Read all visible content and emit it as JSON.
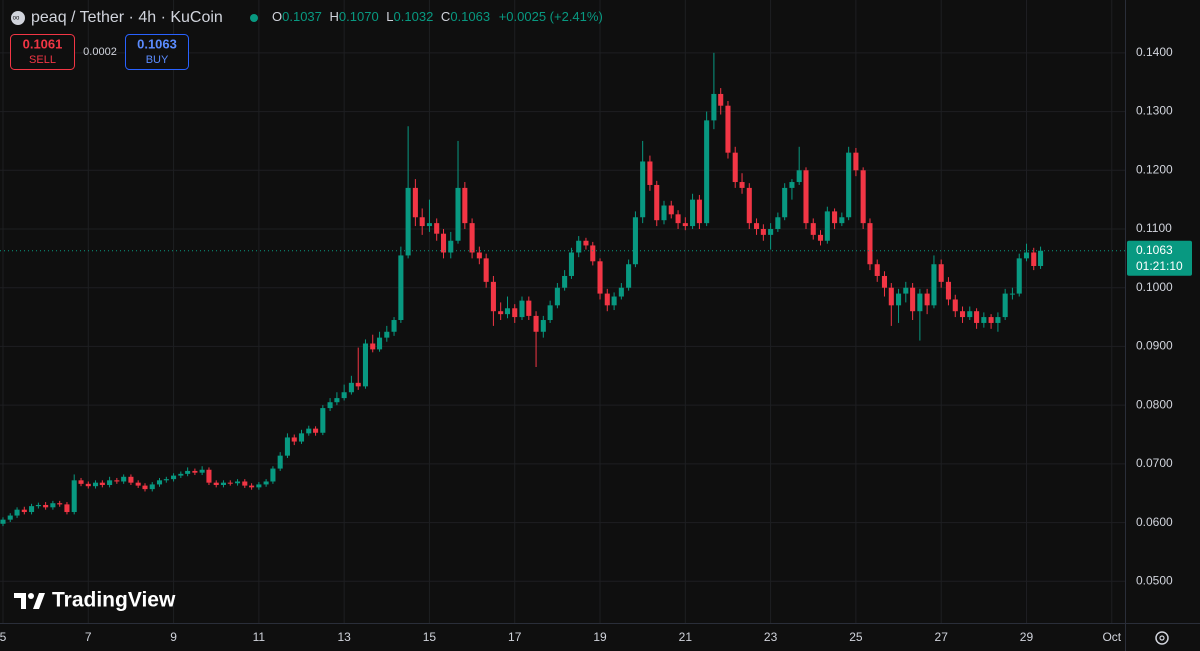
{
  "header": {
    "symbol": "peaq / Tether · 4h · KuCoin",
    "o_label": "O",
    "open": "0.1037",
    "h_label": "H",
    "high": "0.1070",
    "l_label": "L",
    "low": "0.1032",
    "c_label": "C",
    "close": "0.1063",
    "change": "+0.0025 (+2.41%)"
  },
  "trade": {
    "sell_price": "0.1061",
    "sell_label": "SELL",
    "spread": "0.0002",
    "buy_price": "0.1063",
    "buy_label": "BUY"
  },
  "price_label": {
    "price": "0.1063",
    "countdown": "01:21:10"
  },
  "watermark": "TradingView",
  "chart_data": {
    "type": "candlestick",
    "up_color": "#089981",
    "down_color": "#f23645",
    "grid": true,
    "xlim": [
      4.93,
      31.31
    ],
    "ylim": [
      0.0429,
      0.149
    ],
    "xticks": [
      5,
      7,
      9,
      11,
      13,
      15,
      17,
      19,
      21,
      23,
      25,
      27,
      29,
      {
        "value": 31,
        "label": "Oct"
      }
    ],
    "yticks": [
      {
        "value": 0.05,
        "label": "0.0500"
      },
      {
        "value": 0.06,
        "label": "0.0600"
      },
      {
        "value": 0.07,
        "label": "0.0700"
      },
      {
        "value": 0.08,
        "label": "0.0800"
      },
      {
        "value": 0.09,
        "label": "0.0900"
      },
      {
        "value": 0.1,
        "label": "0.1000"
      },
      {
        "value": 0.11,
        "label": "0.1100"
      },
      {
        "value": 0.12,
        "label": "0.1200"
      },
      {
        "value": 0.13,
        "label": "0.1300"
      },
      {
        "value": 0.14,
        "label": "0.1400"
      }
    ],
    "x": [
      5,
      5.17,
      5.33,
      5.5,
      5.67,
      5.83,
      6,
      6.17,
      6.33,
      6.5,
      6.67,
      6.83,
      7,
      7.17,
      7.33,
      7.5,
      7.67,
      7.83,
      8,
      8.17,
      8.33,
      8.5,
      8.67,
      8.83,
      9,
      9.17,
      9.33,
      9.5,
      9.67,
      9.83,
      10,
      10.17,
      10.33,
      10.5,
      10.67,
      10.83,
      11,
      11.17,
      11.33,
      11.5,
      11.67,
      11.83,
      12,
      12.17,
      12.33,
      12.5,
      12.67,
      12.83,
      13,
      13.17,
      13.33,
      13.5,
      13.67,
      13.83,
      14,
      14.17,
      14.33,
      14.5,
      14.67,
      14.83,
      15,
      15.17,
      15.33,
      15.5,
      15.67,
      15.83,
      16,
      16.17,
      16.33,
      16.5,
      16.67,
      16.83,
      17,
      17.17,
      17.33,
      17.5,
      17.67,
      17.83,
      18,
      18.17,
      18.33,
      18.5,
      18.67,
      18.83,
      19,
      19.17,
      19.33,
      19.5,
      19.67,
      19.83,
      20,
      20.17,
      20.33,
      20.5,
      20.67,
      20.83,
      21,
      21.17,
      21.33,
      21.5,
      21.67,
      21.83,
      22,
      22.17,
      22.33,
      22.5,
      22.67,
      22.83,
      23,
      23.17,
      23.33,
      23.5,
      23.67,
      23.83,
      24,
      24.17,
      24.33,
      24.5,
      24.67,
      24.83,
      25,
      25.17,
      25.33,
      25.5,
      25.67,
      25.83,
      26,
      26.17,
      26.33,
      26.5,
      26.67,
      26.83,
      27,
      27.17,
      27.33,
      27.5,
      27.67,
      27.83,
      28,
      28.17,
      28.33,
      28.5,
      28.67,
      28.83,
      29,
      29.17,
      29.33
    ],
    "candles": [
      [
        0.0598,
        0.0609,
        0.0594,
        0.0605
      ],
      [
        0.0605,
        0.0616,
        0.0601,
        0.0612
      ],
      [
        0.0612,
        0.0626,
        0.0608,
        0.0622
      ],
      [
        0.0622,
        0.0627,
        0.0614,
        0.0618
      ],
      [
        0.0618,
        0.0632,
        0.0614,
        0.0628
      ],
      [
        0.0628,
        0.0634,
        0.0624,
        0.063
      ],
      [
        0.063,
        0.0635,
        0.0622,
        0.0626
      ],
      [
        0.0626,
        0.0637,
        0.0622,
        0.0633
      ],
      [
        0.0633,
        0.0637,
        0.0627,
        0.0631
      ],
      [
        0.0631,
        0.0635,
        0.0614,
        0.0618
      ],
      [
        0.0618,
        0.0682,
        0.0614,
        0.0672
      ],
      [
        0.0672,
        0.0676,
        0.0662,
        0.0666
      ],
      [
        0.0666,
        0.067,
        0.0658,
        0.0662
      ],
      [
        0.0662,
        0.0672,
        0.0658,
        0.0668
      ],
      [
        0.0668,
        0.0672,
        0.066,
        0.0664
      ],
      [
        0.0664,
        0.0678,
        0.066,
        0.0672
      ],
      [
        0.0672,
        0.0676,
        0.0666,
        0.067
      ],
      [
        0.067,
        0.0682,
        0.0666,
        0.0678
      ],
      [
        0.0678,
        0.0682,
        0.0664,
        0.0668
      ],
      [
        0.0668,
        0.0672,
        0.0659,
        0.0663
      ],
      [
        0.0663,
        0.0667,
        0.0653,
        0.0657
      ],
      [
        0.0657,
        0.0669,
        0.0653,
        0.0665
      ],
      [
        0.0665,
        0.0676,
        0.0661,
        0.0672
      ],
      [
        0.0672,
        0.0678,
        0.0668,
        0.0674
      ],
      [
        0.0674,
        0.0684,
        0.067,
        0.068
      ],
      [
        0.068,
        0.0687,
        0.0676,
        0.0683
      ],
      [
        0.0683,
        0.0694,
        0.0679,
        0.0688
      ],
      [
        0.0688,
        0.0692,
        0.0681,
        0.0685
      ],
      [
        0.0685,
        0.0696,
        0.0681,
        0.069
      ],
      [
        0.069,
        0.0694,
        0.0664,
        0.0668
      ],
      [
        0.0668,
        0.0672,
        0.066,
        0.0664
      ],
      [
        0.0664,
        0.0672,
        0.066,
        0.0668
      ],
      [
        0.0668,
        0.0672,
        0.0663,
        0.0667
      ],
      [
        0.0667,
        0.0674,
        0.0663,
        0.067
      ],
      [
        0.067,
        0.0674,
        0.0659,
        0.0663
      ],
      [
        0.0663,
        0.0667,
        0.0656,
        0.066
      ],
      [
        0.066,
        0.0669,
        0.0656,
        0.0665
      ],
      [
        0.0665,
        0.0674,
        0.0661,
        0.067
      ],
      [
        0.067,
        0.0696,
        0.0666,
        0.0692
      ],
      [
        0.0692,
        0.072,
        0.0688,
        0.0714
      ],
      [
        0.0714,
        0.0752,
        0.071,
        0.0745
      ],
      [
        0.0745,
        0.075,
        0.0732,
        0.0738
      ],
      [
        0.0738,
        0.0758,
        0.0734,
        0.0752
      ],
      [
        0.0752,
        0.0765,
        0.0748,
        0.076
      ],
      [
        0.076,
        0.0764,
        0.0748,
        0.0753
      ],
      [
        0.0753,
        0.08,
        0.0749,
        0.0795
      ],
      [
        0.0795,
        0.0812,
        0.079,
        0.0805
      ],
      [
        0.0805,
        0.0822,
        0.08,
        0.0812
      ],
      [
        0.0812,
        0.0835,
        0.0808,
        0.0822
      ],
      [
        0.0822,
        0.085,
        0.0818,
        0.0838
      ],
      [
        0.0838,
        0.0898,
        0.0826,
        0.0832
      ],
      [
        0.0832,
        0.0912,
        0.0828,
        0.0905
      ],
      [
        0.0905,
        0.092,
        0.089,
        0.0895
      ],
      [
        0.0895,
        0.0925,
        0.0891,
        0.0915
      ],
      [
        0.0915,
        0.0935,
        0.0908,
        0.0925
      ],
      [
        0.0925,
        0.095,
        0.0918,
        0.0945
      ],
      [
        0.0945,
        0.107,
        0.094,
        0.1055
      ],
      [
        0.1055,
        0.1275,
        0.105,
        0.117
      ],
      [
        0.117,
        0.1185,
        0.1105,
        0.112
      ],
      [
        0.112,
        0.1135,
        0.109,
        0.1105
      ],
      [
        0.1105,
        0.115,
        0.1095,
        0.111
      ],
      [
        0.111,
        0.1118,
        0.108,
        0.1092
      ],
      [
        0.1092,
        0.11,
        0.105,
        0.106
      ],
      [
        0.106,
        0.1095,
        0.105,
        0.108
      ],
      [
        0.108,
        0.125,
        0.1075,
        0.117
      ],
      [
        0.117,
        0.118,
        0.11,
        0.111
      ],
      [
        0.111,
        0.1118,
        0.105,
        0.106
      ],
      [
        0.106,
        0.107,
        0.104,
        0.105
      ],
      [
        0.105,
        0.1058,
        0.1,
        0.101
      ],
      [
        0.101,
        0.102,
        0.0935,
        0.096
      ],
      [
        0.096,
        0.0975,
        0.0945,
        0.0955
      ],
      [
        0.0955,
        0.0985,
        0.0948,
        0.0965
      ],
      [
        0.0965,
        0.0972,
        0.094,
        0.095
      ],
      [
        0.095,
        0.0985,
        0.0945,
        0.0978
      ],
      [
        0.0978,
        0.0985,
        0.0945,
        0.0952
      ],
      [
        0.0952,
        0.096,
        0.0865,
        0.0925
      ],
      [
        0.0925,
        0.0952,
        0.0915,
        0.0945
      ],
      [
        0.0945,
        0.0978,
        0.094,
        0.097
      ],
      [
        0.097,
        0.1008,
        0.0965,
        0.1
      ],
      [
        0.1,
        0.103,
        0.0995,
        0.102
      ],
      [
        0.102,
        0.1068,
        0.1015,
        0.106
      ],
      [
        0.106,
        0.1088,
        0.1052,
        0.108
      ],
      [
        0.108,
        0.1085,
        0.1065,
        0.1072
      ],
      [
        0.1072,
        0.1078,
        0.1038,
        0.1045
      ],
      [
        0.1045,
        0.105,
        0.098,
        0.099
      ],
      [
        0.099,
        0.0998,
        0.096,
        0.097
      ],
      [
        0.097,
        0.0992,
        0.0962,
        0.0985
      ],
      [
        0.0985,
        0.1008,
        0.098,
        0.1
      ],
      [
        0.1,
        0.1048,
        0.0995,
        0.104
      ],
      [
        0.104,
        0.113,
        0.1035,
        0.112
      ],
      [
        0.112,
        0.125,
        0.111,
        0.1215
      ],
      [
        0.1215,
        0.1225,
        0.1165,
        0.1175
      ],
      [
        0.1175,
        0.1182,
        0.1105,
        0.1115
      ],
      [
        0.1115,
        0.1148,
        0.1108,
        0.114
      ],
      [
        0.114,
        0.1148,
        0.1118,
        0.1125
      ],
      [
        0.1125,
        0.1132,
        0.11,
        0.111
      ],
      [
        0.111,
        0.112,
        0.1098,
        0.1105
      ],
      [
        0.1105,
        0.116,
        0.11,
        0.115
      ],
      [
        0.115,
        0.1158,
        0.11,
        0.111
      ],
      [
        0.111,
        0.13,
        0.1105,
        0.1285
      ],
      [
        0.1285,
        0.14,
        0.127,
        0.133
      ],
      [
        0.133,
        0.134,
        0.1295,
        0.131
      ],
      [
        0.131,
        0.1318,
        0.122,
        0.123
      ],
      [
        0.123,
        0.124,
        0.117,
        0.118
      ],
      [
        0.118,
        0.1195,
        0.116,
        0.117
      ],
      [
        0.117,
        0.1178,
        0.11,
        0.111
      ],
      [
        0.111,
        0.1118,
        0.109,
        0.11
      ],
      [
        0.11,
        0.1108,
        0.108,
        0.109
      ],
      [
        0.109,
        0.111,
        0.1065,
        0.11
      ],
      [
        0.11,
        0.1128,
        0.1095,
        0.112
      ],
      [
        0.112,
        0.1178,
        0.1115,
        0.117
      ],
      [
        0.117,
        0.1185,
        0.115,
        0.118
      ],
      [
        0.118,
        0.124,
        0.1175,
        0.12
      ],
      [
        0.12,
        0.1205,
        0.11,
        0.111
      ],
      [
        0.111,
        0.1118,
        0.1082,
        0.109
      ],
      [
        0.109,
        0.1098,
        0.1072,
        0.108
      ],
      [
        0.108,
        0.1138,
        0.1075,
        0.113
      ],
      [
        0.113,
        0.1135,
        0.11,
        0.111
      ],
      [
        0.111,
        0.1128,
        0.1105,
        0.112
      ],
      [
        0.112,
        0.124,
        0.1115,
        0.123
      ],
      [
        0.123,
        0.1238,
        0.119,
        0.12
      ],
      [
        0.12,
        0.1205,
        0.11,
        0.111
      ],
      [
        0.111,
        0.1118,
        0.103,
        0.104
      ],
      [
        0.104,
        0.1048,
        0.101,
        0.102
      ],
      [
        0.102,
        0.1028,
        0.0985,
        0.1
      ],
      [
        0.1,
        0.1008,
        0.0935,
        0.097
      ],
      [
        0.097,
        0.0998,
        0.094,
        0.099
      ],
      [
        0.099,
        0.101,
        0.0975,
        0.1
      ],
      [
        0.1,
        0.1008,
        0.0945,
        0.096
      ],
      [
        0.096,
        0.0998,
        0.091,
        0.099
      ],
      [
        0.099,
        0.0998,
        0.0955,
        0.097
      ],
      [
        0.097,
        0.1055,
        0.0965,
        0.104
      ],
      [
        0.104,
        0.1048,
        0.1,
        0.101
      ],
      [
        0.101,
        0.1018,
        0.097,
        0.098
      ],
      [
        0.098,
        0.0988,
        0.095,
        0.096
      ],
      [
        0.096,
        0.0968,
        0.094,
        0.095
      ],
      [
        0.095,
        0.0968,
        0.0945,
        0.096
      ],
      [
        0.096,
        0.0965,
        0.093,
        0.094
      ],
      [
        0.094,
        0.0958,
        0.0932,
        0.095
      ],
      [
        0.095,
        0.0955,
        0.093,
        0.094
      ],
      [
        0.094,
        0.0958,
        0.0925,
        0.095
      ],
      [
        0.095,
        0.0998,
        0.0945,
        0.099
      ],
      [
        0.099,
        0.1,
        0.098,
        0.099
      ],
      [
        0.099,
        0.1058,
        0.0985,
        0.105
      ],
      [
        0.105,
        0.1075,
        0.1045,
        0.106
      ],
      [
        0.106,
        0.1068,
        0.103,
        0.1037
      ],
      [
        0.1037,
        0.107,
        0.1032,
        0.1063
      ]
    ]
  }
}
